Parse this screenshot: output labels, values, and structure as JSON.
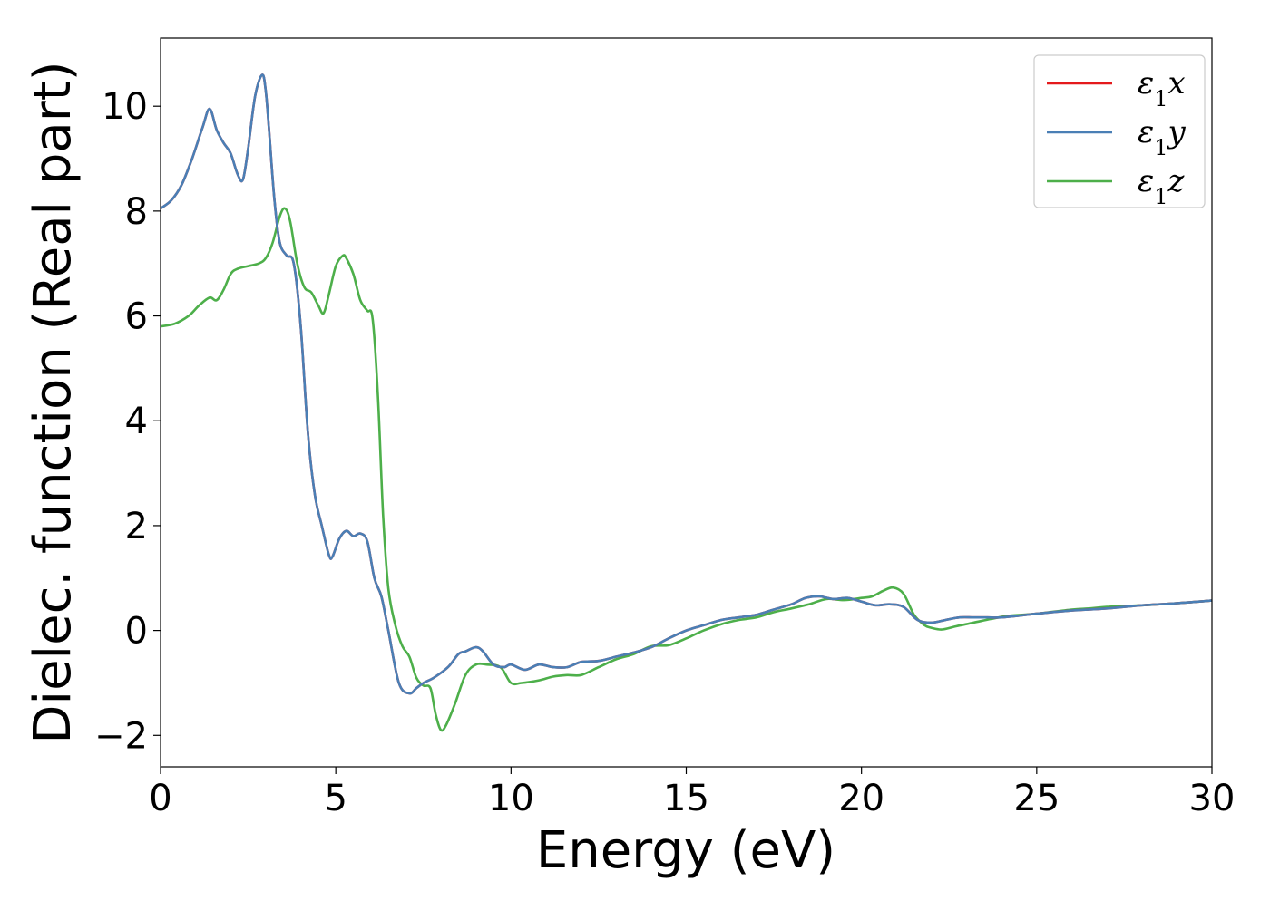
{
  "chart_data": {
    "type": "line",
    "title": "",
    "xlabel": "Energy (eV)",
    "ylabel": "Dielec. function (Real part)",
    "xlim": [
      0,
      30
    ],
    "ylim": [
      -2.6,
      11.3
    ],
    "xticks": [
      0,
      5,
      10,
      15,
      20,
      25,
      30
    ],
    "yticks": [
      -2,
      0,
      2,
      4,
      6,
      8,
      10
    ],
    "grid": false,
    "legend_position": "top-right",
    "series": [
      {
        "name": "ε1x",
        "color": "#e41a1c",
        "x": [
          0,
          0.3,
          0.6,
          0.9,
          1.2,
          1.4,
          1.6,
          1.8,
          2.0,
          2.2,
          2.35,
          2.5,
          2.7,
          2.9,
          3.0,
          3.1,
          3.25,
          3.4,
          3.6,
          3.8,
          4.0,
          4.2,
          4.4,
          4.6,
          4.8,
          4.9,
          5.1,
          5.3,
          5.5,
          5.7,
          5.9,
          6.1,
          6.3,
          6.5,
          6.8,
          7.1,
          7.3,
          7.5,
          7.8,
          8.2,
          8.5,
          8.7,
          9.0,
          9.2,
          9.5,
          9.8,
          10.0,
          10.4,
          10.8,
          11.2,
          11.6,
          12.0,
          12.5,
          13.0,
          13.5,
          14.0,
          14.5,
          15.0,
          15.5,
          16.0,
          16.5,
          17.0,
          17.5,
          18.0,
          18.4,
          18.8,
          19.2,
          19.6,
          20.0,
          20.4,
          20.8,
          21.2,
          21.6,
          22.0,
          22.4,
          22.8,
          23.2,
          23.6,
          24.0,
          25.0,
          26.0,
          27.0,
          28.0,
          29.0,
          30.0
        ],
        "values": [
          8.05,
          8.2,
          8.5,
          9.0,
          9.6,
          9.95,
          9.55,
          9.3,
          9.1,
          8.7,
          8.6,
          9.2,
          10.2,
          10.6,
          10.3,
          9.5,
          8.2,
          7.4,
          7.15,
          7.0,
          5.8,
          3.8,
          2.6,
          2.0,
          1.45,
          1.4,
          1.75,
          1.9,
          1.8,
          1.85,
          1.7,
          1.0,
          0.65,
          0.0,
          -1.0,
          -1.2,
          -1.1,
          -1.0,
          -0.9,
          -0.7,
          -0.45,
          -0.4,
          -0.32,
          -0.4,
          -0.65,
          -0.7,
          -0.65,
          -0.75,
          -0.65,
          -0.7,
          -0.7,
          -0.6,
          -0.58,
          -0.5,
          -0.42,
          -0.32,
          -0.15,
          0.0,
          0.1,
          0.2,
          0.25,
          0.3,
          0.4,
          0.5,
          0.62,
          0.65,
          0.6,
          0.62,
          0.55,
          0.48,
          0.5,
          0.45,
          0.2,
          0.15,
          0.2,
          0.25,
          0.25,
          0.25,
          0.25,
          0.32,
          0.38,
          0.42,
          0.48,
          0.52,
          0.57
        ]
      },
      {
        "name": "ε1y",
        "color": "#4a7fb5",
        "x": [
          0,
          0.3,
          0.6,
          0.9,
          1.2,
          1.4,
          1.6,
          1.8,
          2.0,
          2.2,
          2.35,
          2.5,
          2.7,
          2.9,
          3.0,
          3.1,
          3.25,
          3.4,
          3.6,
          3.8,
          4.0,
          4.2,
          4.4,
          4.6,
          4.8,
          4.9,
          5.1,
          5.3,
          5.5,
          5.7,
          5.9,
          6.1,
          6.3,
          6.5,
          6.8,
          7.1,
          7.3,
          7.5,
          7.8,
          8.2,
          8.5,
          8.7,
          9.0,
          9.2,
          9.5,
          9.8,
          10.0,
          10.4,
          10.8,
          11.2,
          11.6,
          12.0,
          12.5,
          13.0,
          13.5,
          14.0,
          14.5,
          15.0,
          15.5,
          16.0,
          16.5,
          17.0,
          17.5,
          18.0,
          18.4,
          18.8,
          19.2,
          19.6,
          20.0,
          20.4,
          20.8,
          21.2,
          21.6,
          22.0,
          22.4,
          22.8,
          23.2,
          23.6,
          24.0,
          25.0,
          26.0,
          27.0,
          28.0,
          29.0,
          30.0
        ],
        "values": [
          8.05,
          8.2,
          8.5,
          9.0,
          9.6,
          9.95,
          9.55,
          9.3,
          9.1,
          8.7,
          8.6,
          9.2,
          10.2,
          10.6,
          10.3,
          9.5,
          8.2,
          7.4,
          7.15,
          7.0,
          5.8,
          3.8,
          2.6,
          2.0,
          1.45,
          1.4,
          1.75,
          1.9,
          1.8,
          1.85,
          1.7,
          1.0,
          0.65,
          0.0,
          -1.0,
          -1.2,
          -1.1,
          -1.0,
          -0.9,
          -0.7,
          -0.45,
          -0.4,
          -0.32,
          -0.4,
          -0.65,
          -0.7,
          -0.65,
          -0.75,
          -0.65,
          -0.7,
          -0.7,
          -0.6,
          -0.58,
          -0.5,
          -0.42,
          -0.32,
          -0.15,
          0.0,
          0.1,
          0.2,
          0.25,
          0.3,
          0.4,
          0.5,
          0.62,
          0.65,
          0.6,
          0.62,
          0.55,
          0.48,
          0.5,
          0.45,
          0.2,
          0.15,
          0.2,
          0.25,
          0.25,
          0.25,
          0.25,
          0.32,
          0.38,
          0.42,
          0.48,
          0.52,
          0.57
        ]
      },
      {
        "name": "ε1z",
        "color": "#4daf4a",
        "x": [
          0,
          0.4,
          0.8,
          1.1,
          1.4,
          1.6,
          1.8,
          2.0,
          2.2,
          2.5,
          2.8,
          3.0,
          3.2,
          3.4,
          3.55,
          3.7,
          3.9,
          4.1,
          4.3,
          4.5,
          4.65,
          4.8,
          5.0,
          5.2,
          5.3,
          5.5,
          5.7,
          5.9,
          6.05,
          6.2,
          6.35,
          6.5,
          6.7,
          6.9,
          7.1,
          7.3,
          7.5,
          7.7,
          7.85,
          8.0,
          8.15,
          8.4,
          8.7,
          9.0,
          9.3,
          9.7,
          10.0,
          10.3,
          10.8,
          11.2,
          11.6,
          12.0,
          12.5,
          13.0,
          13.5,
          14.0,
          14.5,
          15.0,
          15.5,
          16.0,
          16.5,
          17.0,
          17.5,
          18.0,
          18.5,
          19.0,
          19.5,
          20.0,
          20.3,
          20.6,
          20.9,
          21.2,
          21.5,
          21.8,
          22.0,
          22.3,
          22.7,
          23.2,
          23.7,
          24.2,
          25.0,
          26.0,
          26.5,
          27.0,
          28.0,
          29.0,
          30.0
        ],
        "values": [
          5.8,
          5.85,
          6.0,
          6.2,
          6.35,
          6.3,
          6.5,
          6.8,
          6.9,
          6.95,
          7.0,
          7.1,
          7.4,
          7.9,
          8.05,
          7.8,
          7.0,
          6.55,
          6.45,
          6.2,
          6.05,
          6.4,
          6.95,
          7.15,
          7.1,
          6.8,
          6.3,
          6.1,
          5.95,
          4.5,
          2.2,
          0.8,
          0.1,
          -0.3,
          -0.5,
          -0.9,
          -1.05,
          -1.1,
          -1.6,
          -1.9,
          -1.8,
          -1.4,
          -0.85,
          -0.65,
          -0.65,
          -0.7,
          -1.0,
          -1.0,
          -0.95,
          -0.88,
          -0.85,
          -0.85,
          -0.7,
          -0.55,
          -0.45,
          -0.3,
          -0.28,
          -0.15,
          0.0,
          0.12,
          0.2,
          0.25,
          0.35,
          0.42,
          0.5,
          0.6,
          0.58,
          0.62,
          0.65,
          0.75,
          0.82,
          0.7,
          0.3,
          0.1,
          0.05,
          0.02,
          0.08,
          0.15,
          0.22,
          0.28,
          0.32,
          0.4,
          0.42,
          0.45,
          0.48,
          0.52,
          0.57
        ]
      }
    ]
  }
}
